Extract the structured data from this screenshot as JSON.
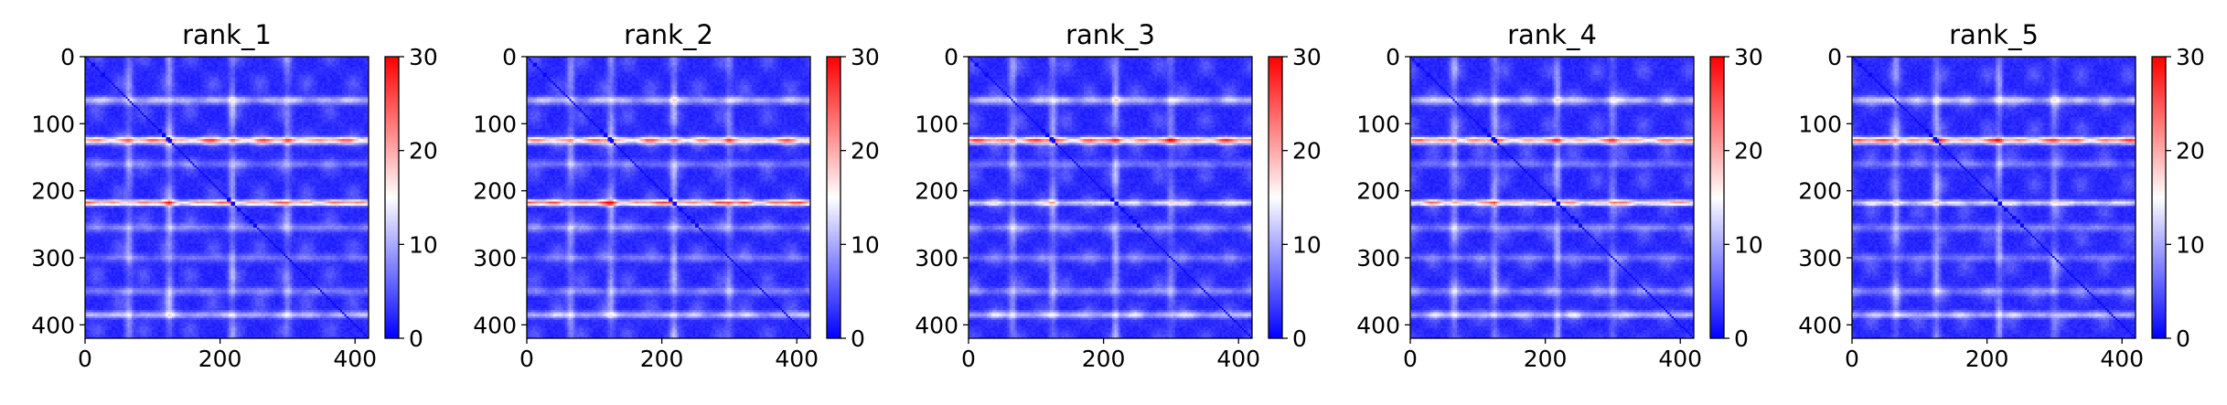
{
  "chart_data": [
    {
      "type": "heatmap",
      "title": "rank_1",
      "x_range": [
        0,
        420
      ],
      "y_range": [
        420,
        0
      ],
      "xticks": [
        "0",
        "200",
        "400"
      ],
      "yticks": [
        "0",
        "100",
        "200",
        "300",
        "400"
      ],
      "colorbar": {
        "range": [
          0,
          30
        ],
        "ticks": [
          "0",
          "10",
          "20",
          "30"
        ],
        "colormap": [
          "#0000ff",
          "#ffffff",
          "#ff0000"
        ]
      },
      "diagonal": true,
      "bright_rows": [
        {
          "y": 125,
          "peak": 24,
          "width": 5
        },
        {
          "y": 218,
          "peak": 25,
          "width": 4
        },
        {
          "y": 65,
          "peak": 12,
          "width": 6
        },
        {
          "y": 385,
          "peak": 12,
          "width": 5
        },
        {
          "y": 160,
          "peak": 7,
          "width": 6
        },
        {
          "y": 255,
          "peak": 8,
          "width": 6
        },
        {
          "y": 300,
          "peak": 7,
          "width": 6
        },
        {
          "y": 350,
          "peak": 8,
          "width": 6
        }
      ],
      "bright_columns": [
        {
          "x": 125,
          "peak": 9,
          "width": 6
        },
        {
          "x": 218,
          "peak": 9,
          "width": 5
        },
        {
          "x": 65,
          "peak": 8,
          "width": 6
        },
        {
          "x": 300,
          "peak": 7,
          "width": 6
        }
      ]
    },
    {
      "type": "heatmap",
      "title": "rank_2",
      "x_range": [
        0,
        420
      ],
      "y_range": [
        420,
        0
      ],
      "xticks": [
        "0",
        "200",
        "400"
      ],
      "yticks": [
        "0",
        "100",
        "200",
        "300",
        "400"
      ],
      "colorbar": {
        "range": [
          0,
          30
        ],
        "ticks": [
          "0",
          "10",
          "20",
          "30"
        ],
        "colormap": [
          "#0000ff",
          "#ffffff",
          "#ff0000"
        ]
      },
      "diagonal": true,
      "bright_rows": [
        {
          "y": 125,
          "peak": 23,
          "width": 5
        },
        {
          "y": 218,
          "peak": 27,
          "width": 4
        },
        {
          "y": 65,
          "peak": 12,
          "width": 6
        },
        {
          "y": 385,
          "peak": 12,
          "width": 5
        },
        {
          "y": 160,
          "peak": 7,
          "width": 6
        },
        {
          "y": 255,
          "peak": 8,
          "width": 6
        },
        {
          "y": 300,
          "peak": 7,
          "width": 6
        },
        {
          "y": 350,
          "peak": 8,
          "width": 6
        }
      ],
      "bright_columns": [
        {
          "x": 125,
          "peak": 9,
          "width": 6
        },
        {
          "x": 218,
          "peak": 9,
          "width": 5
        },
        {
          "x": 65,
          "peak": 8,
          "width": 6
        },
        {
          "x": 300,
          "peak": 7,
          "width": 6
        }
      ]
    },
    {
      "type": "heatmap",
      "title": "rank_3",
      "x_range": [
        0,
        420
      ],
      "y_range": [
        420,
        0
      ],
      "xticks": [
        "0",
        "200",
        "400"
      ],
      "yticks": [
        "0",
        "100",
        "200",
        "300",
        "400"
      ],
      "colorbar": {
        "range": [
          0,
          30
        ],
        "ticks": [
          "0",
          "10",
          "20",
          "30"
        ],
        "colormap": [
          "#0000ff",
          "#ffffff",
          "#ff0000"
        ]
      },
      "diagonal": true,
      "bright_rows": [
        {
          "y": 125,
          "peak": 26,
          "width": 5
        },
        {
          "y": 218,
          "peak": 15,
          "width": 4
        },
        {
          "y": 65,
          "peak": 12,
          "width": 6
        },
        {
          "y": 385,
          "peak": 12,
          "width": 5
        },
        {
          "y": 160,
          "peak": 7,
          "width": 6
        },
        {
          "y": 255,
          "peak": 8,
          "width": 6
        },
        {
          "y": 300,
          "peak": 7,
          "width": 6
        },
        {
          "y": 350,
          "peak": 8,
          "width": 6
        }
      ],
      "bright_columns": [
        {
          "x": 125,
          "peak": 9,
          "width": 6
        },
        {
          "x": 218,
          "peak": 9,
          "width": 5
        },
        {
          "x": 65,
          "peak": 8,
          "width": 6
        },
        {
          "x": 300,
          "peak": 7,
          "width": 6
        }
      ]
    },
    {
      "type": "heatmap",
      "title": "rank_4",
      "x_range": [
        0,
        420
      ],
      "y_range": [
        420,
        0
      ],
      "xticks": [
        "0",
        "200",
        "400"
      ],
      "yticks": [
        "0",
        "100",
        "200",
        "300",
        "400"
      ],
      "colorbar": {
        "range": [
          0,
          30
        ],
        "ticks": [
          "0",
          "10",
          "20",
          "30"
        ],
        "colormap": [
          "#0000ff",
          "#ffffff",
          "#ff0000"
        ]
      },
      "diagonal": true,
      "bright_rows": [
        {
          "y": 125,
          "peak": 24,
          "width": 5
        },
        {
          "y": 218,
          "peak": 22,
          "width": 4
        },
        {
          "y": 65,
          "peak": 12,
          "width": 6
        },
        {
          "y": 385,
          "peak": 12,
          "width": 5
        },
        {
          "y": 160,
          "peak": 7,
          "width": 6
        },
        {
          "y": 255,
          "peak": 8,
          "width": 6
        },
        {
          "y": 300,
          "peak": 7,
          "width": 6
        },
        {
          "y": 350,
          "peak": 8,
          "width": 6
        }
      ],
      "bright_columns": [
        {
          "x": 125,
          "peak": 9,
          "width": 6
        },
        {
          "x": 218,
          "peak": 9,
          "width": 5
        },
        {
          "x": 65,
          "peak": 8,
          "width": 6
        },
        {
          "x": 300,
          "peak": 7,
          "width": 6
        }
      ]
    },
    {
      "type": "heatmap",
      "title": "rank_5",
      "x_range": [
        0,
        420
      ],
      "y_range": [
        420,
        0
      ],
      "xticks": [
        "0",
        "200",
        "400"
      ],
      "yticks": [
        "0",
        "100",
        "200",
        "300",
        "400"
      ],
      "colorbar": {
        "range": [
          0,
          30
        ],
        "ticks": [
          "0",
          "10",
          "20",
          "30"
        ],
        "colormap": [
          "#0000ff",
          "#ffffff",
          "#ff0000"
        ]
      },
      "diagonal": true,
      "bright_rows": [
        {
          "y": 125,
          "peak": 26,
          "width": 5
        },
        {
          "y": 218,
          "peak": 16,
          "width": 4
        },
        {
          "y": 65,
          "peak": 12,
          "width": 6
        },
        {
          "y": 385,
          "peak": 12,
          "width": 5
        },
        {
          "y": 160,
          "peak": 7,
          "width": 6
        },
        {
          "y": 255,
          "peak": 8,
          "width": 6
        },
        {
          "y": 300,
          "peak": 7,
          "width": 6
        },
        {
          "y": 350,
          "peak": 8,
          "width": 6
        }
      ],
      "bright_columns": [
        {
          "x": 125,
          "peak": 9,
          "width": 6
        },
        {
          "x": 218,
          "peak": 9,
          "width": 5
        },
        {
          "x": 65,
          "peak": 8,
          "width": 6
        },
        {
          "x": 300,
          "peak": 7,
          "width": 6
        }
      ]
    }
  ]
}
